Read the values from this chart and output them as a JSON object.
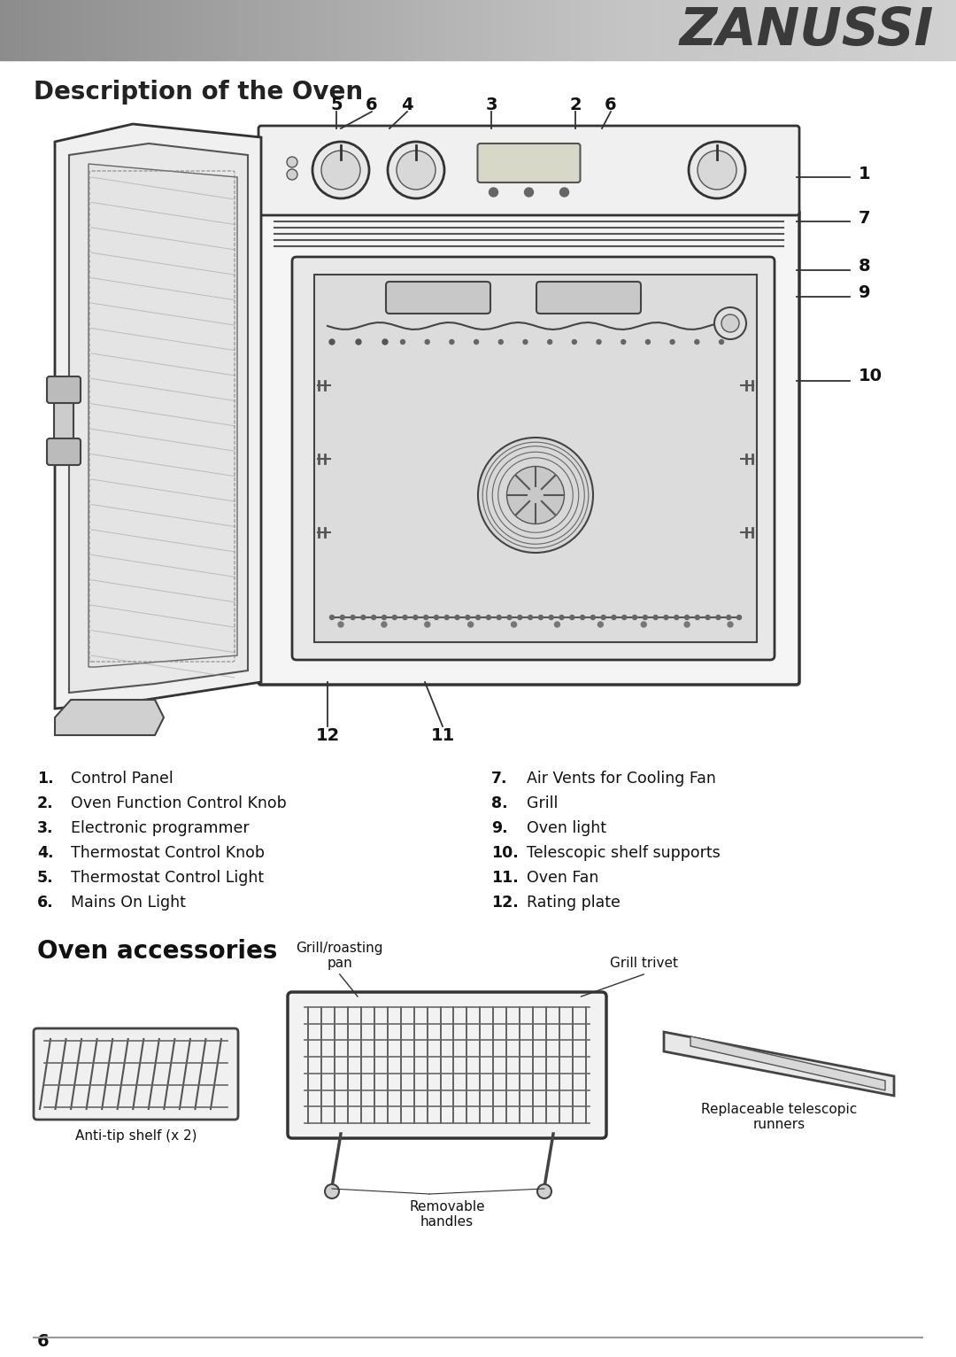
{
  "title": "Description of the Oven",
  "accessories_title": "Oven accessories",
  "brand": "ZANUSSI",
  "page_number": "6",
  "parts_left": [
    {
      "num": "1.",
      "text": "Control Panel"
    },
    {
      "num": "2.",
      "text": "Oven Function Control Knob"
    },
    {
      "num": "3.",
      "text": "Electronic programmer"
    },
    {
      "num": "4.",
      "text": "Thermostat Control Knob"
    },
    {
      "num": "5.",
      "text": "Thermostat Control Light"
    },
    {
      "num": "6.",
      "text": "Mains On Light"
    }
  ],
  "parts_right": [
    {
      "num": "7.",
      "text": "Air Vents for Cooling Fan"
    },
    {
      "num": "8.",
      "text": "Grill"
    },
    {
      "num": "9.",
      "text": "Oven light"
    },
    {
      "num": "10.",
      "text": "Telescopic shelf supports"
    },
    {
      "num": "11.",
      "text": "Oven Fan"
    },
    {
      "num": "12.",
      "text": "Rating plate"
    }
  ],
  "bg_color": "#ffffff",
  "title_fontsize": 20,
  "brand_fontsize": 42,
  "body_fontsize": 12.5,
  "num_fontsize": 12.5,
  "callout_fontsize": 13,
  "acc_title_fontsize": 20
}
